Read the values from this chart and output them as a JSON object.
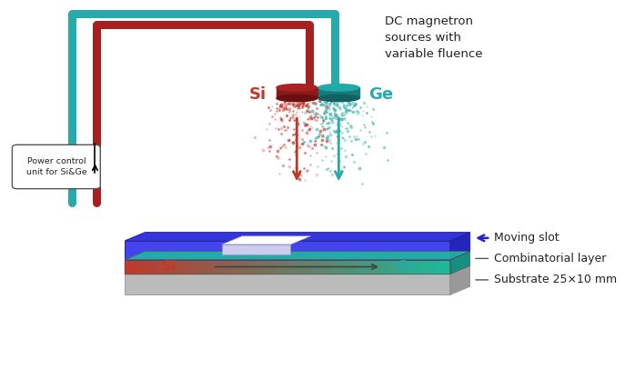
{
  "bg_color": "#ffffff",
  "si_color": "#c0392b",
  "ge_color": "#29aaaa",
  "pipe_si_color": "#a52020",
  "pipe_ge_color": "#29aaaa",
  "blue_plate_color": "#3535dd",
  "blue_plate_front": "#4444ee",
  "blue_plate_right": "#2525bb",
  "substrate_color": "#bbbbbb",
  "substrate_top": "#cccccc",
  "substrate_right": "#999999",
  "comb_top_color": "#20b8a0",
  "comb_right_color": "#159080",
  "text_color": "#222222",
  "arrow_color": "#2222cc",
  "dc_text": "DC magnetron\nsources with\nvariable fluence",
  "power_text": "Power control\nunit for Si&Ge",
  "moving_slot_text": "Moving slot",
  "combinatorial_text": "Combinatorial layer",
  "substrate_text": "Substrate 25×10 mm",
  "si_label": "Si",
  "ge_label": "Ge",
  "figsize": [
    6.87,
    4.17
  ],
  "dpi": 100
}
